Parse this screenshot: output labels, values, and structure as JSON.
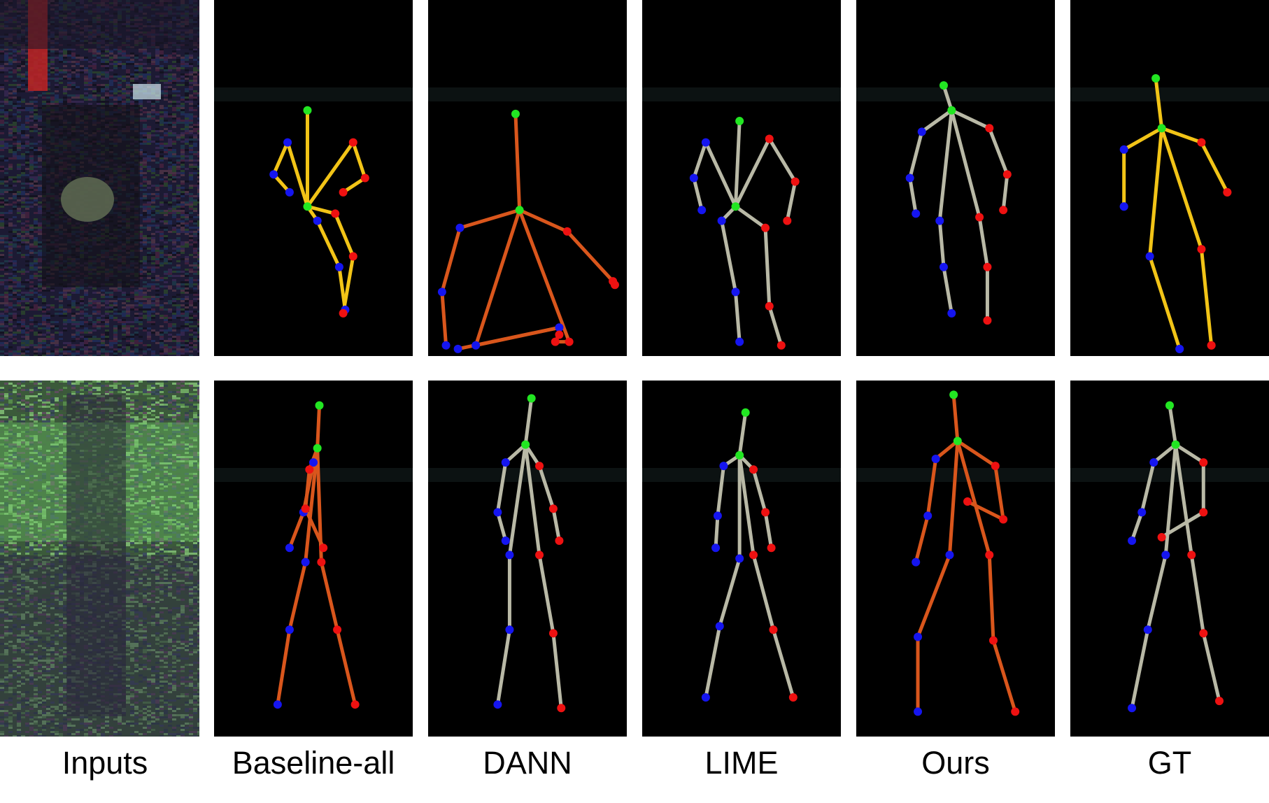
{
  "figure": {
    "columns": [
      {
        "key": "inputs",
        "label": "Inputs"
      },
      {
        "key": "baseline_all",
        "label": "Baseline-all"
      },
      {
        "key": "dann",
        "label": "DANN"
      },
      {
        "key": "lime",
        "label": "LIME"
      },
      {
        "key": "ours",
        "label": "Ours"
      },
      {
        "key": "gt",
        "label": "GT"
      }
    ]
  },
  "colors": {
    "background": "#000000",
    "head_joint": "#22e622",
    "left_joint": "#1515f0",
    "right_joint": "#ee1111",
    "limb_yellow": "#f2c417",
    "limb_orange": "#d9561c",
    "limb_gray": "#b9b9a6"
  },
  "skeletons": [
    {
      "row": 1,
      "panels": {
        "baseline_all": {
          "limb": "yellow",
          "head": [
            0.47,
            0.31
          ],
          "neck": [
            0.47,
            0.58
          ],
          "l_sho": [
            0.37,
            0.4
          ],
          "l_elb": [
            0.3,
            0.49
          ],
          "l_wri": [
            0.38,
            0.54
          ],
          "r_sho": [
            0.7,
            0.4
          ],
          "r_elb": [
            0.76,
            0.5
          ],
          "r_wri": [
            0.65,
            0.54
          ],
          "l_hip": [
            0.52,
            0.62
          ],
          "l_knee": [
            0.63,
            0.75
          ],
          "l_ank": [
            0.66,
            0.87
          ],
          "r_hip": [
            0.61,
            0.6
          ],
          "r_knee": [
            0.7,
            0.72
          ],
          "r_ank": [
            0.65,
            0.88
          ]
        },
        "dann": {
          "limb": "orange",
          "head": [
            0.44,
            0.32
          ],
          "neck": [
            0.46,
            0.59
          ],
          "l_sho": [
            0.16,
            0.64
          ],
          "l_elb": [
            0.07,
            0.82
          ],
          "l_wri": [
            0.09,
            0.97
          ],
          "r_sho": [
            0.7,
            0.65
          ],
          "r_elb": [
            0.93,
            0.79
          ],
          "r_wri": [
            0.94,
            0.8
          ],
          "l_hip": [
            0.24,
            0.97
          ],
          "l_knee": [
            0.66,
            0.92
          ],
          "l_ank": [
            0.15,
            0.98
          ],
          "r_hip": [
            0.71,
            0.96
          ],
          "r_knee": [
            0.64,
            0.96
          ],
          "r_ank": [
            0.66,
            0.94
          ]
        },
        "lime": {
          "limb": "gray",
          "head": [
            0.49,
            0.34
          ],
          "neck": [
            0.47,
            0.58
          ],
          "l_sho": [
            0.32,
            0.4
          ],
          "l_elb": [
            0.26,
            0.5
          ],
          "l_wri": [
            0.3,
            0.59
          ],
          "r_sho": [
            0.64,
            0.39
          ],
          "r_elb": [
            0.77,
            0.51
          ],
          "r_wri": [
            0.73,
            0.62
          ],
          "l_hip": [
            0.4,
            0.62
          ],
          "l_knee": [
            0.47,
            0.82
          ],
          "l_ank": [
            0.49,
            0.96
          ],
          "r_hip": [
            0.62,
            0.64
          ],
          "r_knee": [
            0.64,
            0.86
          ],
          "r_ank": [
            0.7,
            0.97
          ]
        },
        "ours": {
          "limb": "gray",
          "head": [
            0.44,
            0.24
          ],
          "neck": [
            0.48,
            0.31
          ],
          "l_sho": [
            0.33,
            0.37
          ],
          "l_elb": [
            0.27,
            0.5
          ],
          "l_wri": [
            0.3,
            0.6
          ],
          "r_sho": [
            0.67,
            0.36
          ],
          "r_elb": [
            0.76,
            0.49
          ],
          "r_wri": [
            0.74,
            0.59
          ],
          "l_hip": [
            0.42,
            0.62
          ],
          "l_knee": [
            0.44,
            0.75
          ],
          "l_ank": [
            0.48,
            0.88
          ],
          "r_hip": [
            0.62,
            0.61
          ],
          "r_knee": [
            0.66,
            0.75
          ],
          "r_ank": [
            0.66,
            0.9
          ]
        },
        "gt": {
          "limb": "yellow",
          "head": [
            0.43,
            0.22
          ],
          "neck": [
            0.46,
            0.36
          ],
          "l_sho": [
            0.27,
            0.42
          ],
          "l_elb": [
            0.27,
            0.58
          ],
          "l_wri": [
            0.27,
            0.58
          ],
          "r_sho": [
            0.66,
            0.4
          ],
          "r_elb": [
            0.79,
            0.54
          ],
          "r_wri": [
            0.79,
            0.54
          ],
          "l_hip": [
            0.4,
            0.72
          ],
          "l_knee": [
            0.55,
            0.98
          ],
          "l_ank": [
            0.55,
            0.98
          ],
          "r_hip": [
            0.66,
            0.7
          ],
          "r_knee": [
            0.71,
            0.97
          ],
          "r_ank": [
            0.71,
            0.97
          ]
        }
      }
    },
    {
      "row": 2,
      "panels": {
        "baseline_all": {
          "limb": "orange",
          "head": [
            0.53,
            0.07
          ],
          "neck": [
            0.52,
            0.19
          ],
          "l_sho": [
            0.5,
            0.23
          ],
          "l_elb": [
            0.45,
            0.37
          ],
          "l_wri": [
            0.38,
            0.47
          ],
          "r_sho": [
            0.48,
            0.25
          ],
          "r_elb": [
            0.46,
            0.36
          ],
          "r_wri": [
            0.55,
            0.47
          ],
          "l_hip": [
            0.46,
            0.51
          ],
          "l_knee": [
            0.38,
            0.7
          ],
          "l_ank": [
            0.32,
            0.91
          ],
          "r_hip": [
            0.54,
            0.51
          ],
          "r_knee": [
            0.62,
            0.7
          ],
          "r_ank": [
            0.71,
            0.91
          ]
        },
        "dann": {
          "limb": "gray",
          "head": [
            0.52,
            0.05
          ],
          "neck": [
            0.49,
            0.18
          ],
          "l_sho": [
            0.39,
            0.23
          ],
          "l_elb": [
            0.35,
            0.37
          ],
          "l_wri": [
            0.39,
            0.45
          ],
          "r_sho": [
            0.56,
            0.24
          ],
          "r_elb": [
            0.63,
            0.36
          ],
          "r_wri": [
            0.66,
            0.45
          ],
          "l_hip": [
            0.41,
            0.49
          ],
          "l_knee": [
            0.41,
            0.7
          ],
          "l_ank": [
            0.35,
            0.91
          ],
          "r_hip": [
            0.56,
            0.49
          ],
          "r_knee": [
            0.63,
            0.71
          ],
          "r_ank": [
            0.67,
            0.92
          ]
        },
        "lime": {
          "limb": "gray",
          "head": [
            0.52,
            0.09
          ],
          "neck": [
            0.49,
            0.21
          ],
          "l_sho": [
            0.41,
            0.24
          ],
          "l_elb": [
            0.38,
            0.38
          ],
          "l_wri": [
            0.37,
            0.47
          ],
          "r_sho": [
            0.56,
            0.25
          ],
          "r_elb": [
            0.62,
            0.37
          ],
          "r_wri": [
            0.65,
            0.47
          ],
          "l_hip": [
            0.49,
            0.5
          ],
          "l_knee": [
            0.39,
            0.69
          ],
          "l_ank": [
            0.32,
            0.89
          ],
          "r_hip": [
            0.56,
            0.49
          ],
          "r_knee": [
            0.66,
            0.7
          ],
          "r_ank": [
            0.76,
            0.89
          ]
        },
        "ours": {
          "limb": "orange",
          "head": [
            0.49,
            0.04
          ],
          "neck": [
            0.51,
            0.17
          ],
          "l_sho": [
            0.4,
            0.22
          ],
          "l_elb": [
            0.36,
            0.38
          ],
          "l_wri": [
            0.3,
            0.51
          ],
          "r_sho": [
            0.7,
            0.24
          ],
          "r_elb": [
            0.74,
            0.39
          ],
          "r_wri": [
            0.56,
            0.34
          ],
          "l_hip": [
            0.47,
            0.49
          ],
          "l_knee": [
            0.31,
            0.72
          ],
          "l_ank": [
            0.31,
            0.93
          ],
          "r_hip": [
            0.67,
            0.49
          ],
          "r_knee": [
            0.69,
            0.73
          ],
          "r_ank": [
            0.8,
            0.93
          ]
        },
        "gt": {
          "limb": "gray",
          "head": [
            0.5,
            0.07
          ],
          "neck": [
            0.53,
            0.18
          ],
          "l_sho": [
            0.42,
            0.23
          ],
          "l_elb": [
            0.36,
            0.37
          ],
          "l_wri": [
            0.31,
            0.45
          ],
          "r_sho": [
            0.67,
            0.23
          ],
          "r_elb": [
            0.67,
            0.37
          ],
          "r_wri": [
            0.46,
            0.44
          ],
          "l_hip": [
            0.48,
            0.49
          ],
          "l_knee": [
            0.39,
            0.7
          ],
          "l_ank": [
            0.31,
            0.92
          ],
          "r_hip": [
            0.61,
            0.49
          ],
          "r_knee": [
            0.67,
            0.71
          ],
          "r_ank": [
            0.75,
            0.9
          ]
        }
      }
    }
  ]
}
